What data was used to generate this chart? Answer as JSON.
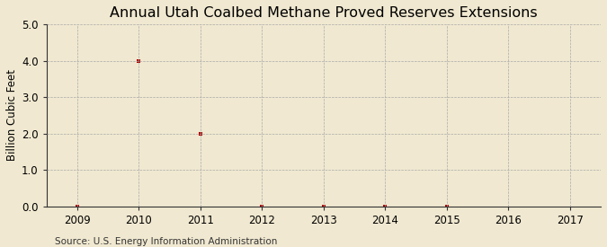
{
  "title": "Annual Utah Coalbed Methane Proved Reserves Extensions",
  "ylabel": "Billion Cubic Feet",
  "source_text": "Source: U.S. Energy Information Administration",
  "x_data": [
    2009,
    2010,
    2011,
    2012,
    2013,
    2014,
    2015
  ],
  "y_data": [
    0.0,
    4.0,
    2.0,
    0.0,
    0.0,
    0.0,
    0.0
  ],
  "xlim": [
    2008.5,
    2017.5
  ],
  "ylim": [
    0.0,
    5.0
  ],
  "xticks": [
    2009,
    2010,
    2011,
    2012,
    2013,
    2014,
    2015,
    2016,
    2017
  ],
  "yticks": [
    0.0,
    1.0,
    2.0,
    3.0,
    4.0,
    5.0
  ],
  "marker_color": "#aa0000",
  "marker_style": "s",
  "marker_size": 3.5,
  "background_color": "#f0e8d0",
  "plot_bg_color": "#f0e8d0",
  "grid_color": "#aaaaaa",
  "title_fontsize": 11.5,
  "label_fontsize": 8.5,
  "tick_fontsize": 8.5,
  "source_fontsize": 7.5
}
